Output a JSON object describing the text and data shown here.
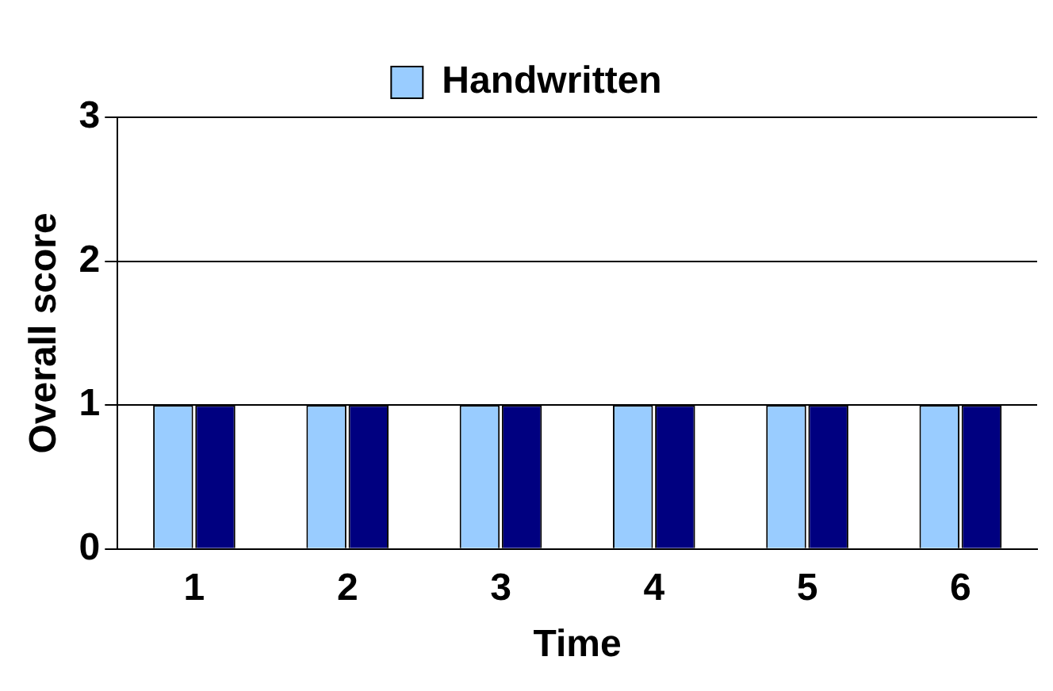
{
  "chart_data": {
    "type": "bar",
    "xlabel": "Time",
    "ylabel": "Overall score",
    "categories": [
      "1",
      "2",
      "3",
      "4",
      "5",
      "6"
    ],
    "series": [
      {
        "name": "Handwritten",
        "color": "#99ccff",
        "values": [
          1,
          1,
          1,
          1,
          1,
          1
        ]
      },
      {
        "color": "#000080",
        "values": [
          1,
          1,
          1,
          1,
          1,
          1
        ]
      }
    ],
    "ylim": [
      0,
      3
    ],
    "yticks": [
      0,
      1,
      2,
      3
    ],
    "grid": "y",
    "legend": "top"
  }
}
